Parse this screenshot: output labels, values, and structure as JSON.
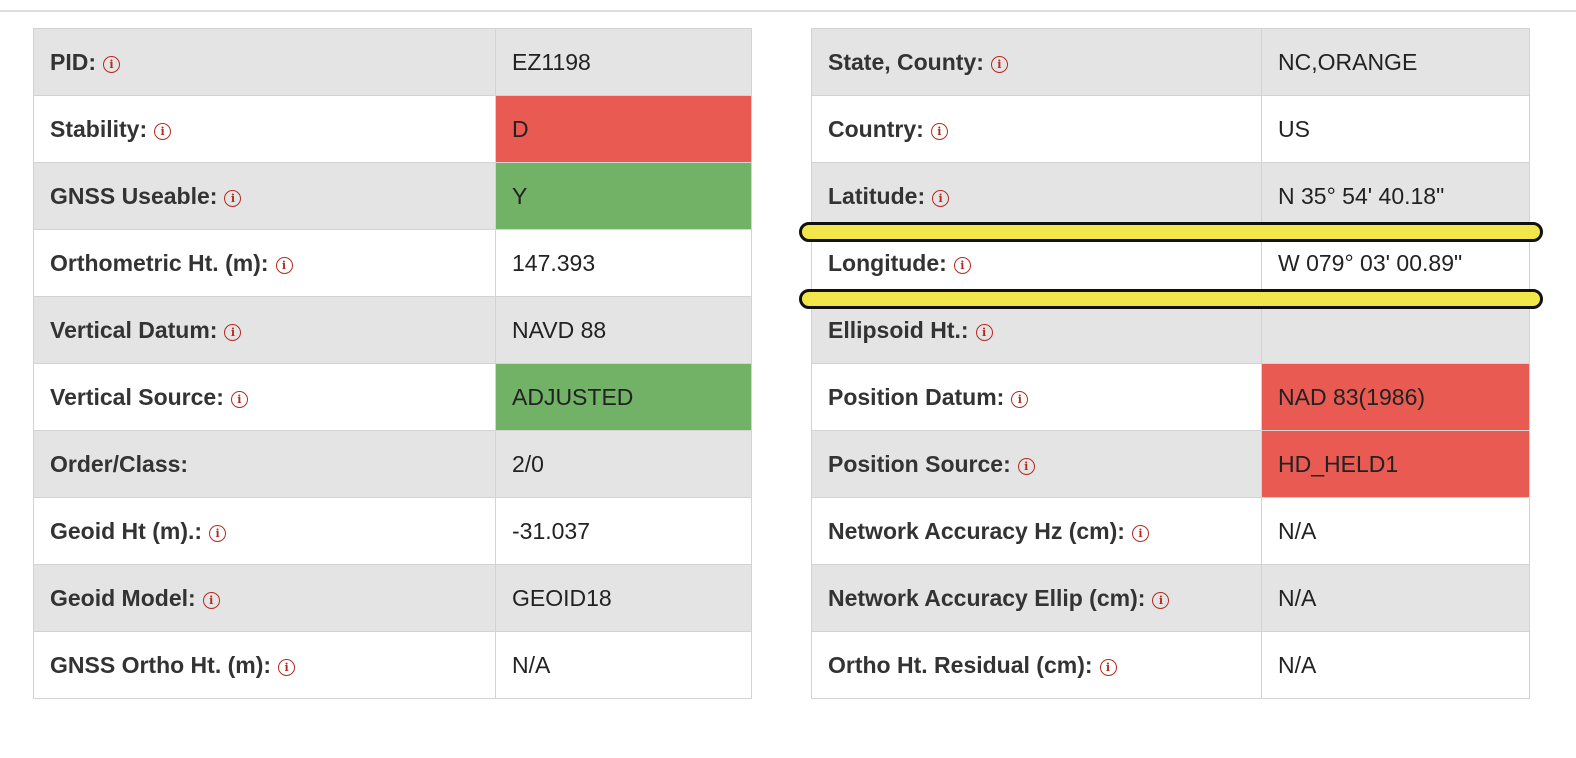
{
  "left_table": {
    "rows": [
      {
        "label": "PID:",
        "value": "EZ1198",
        "info": true,
        "status": ""
      },
      {
        "label": "Stability:",
        "value": "D",
        "info": true,
        "status": "red"
      },
      {
        "label": "GNSS Useable:",
        "value": "Y",
        "info": true,
        "status": "green"
      },
      {
        "label": "Orthometric Ht. (m):",
        "value": "147.393",
        "info": true,
        "status": ""
      },
      {
        "label": "Vertical Datum:",
        "value": "NAVD 88",
        "info": true,
        "status": ""
      },
      {
        "label": "Vertical Source:",
        "value": "ADJUSTED",
        "info": true,
        "status": "green"
      },
      {
        "label": "Order/Class:",
        "value": "2/0",
        "info": false,
        "status": ""
      },
      {
        "label": "Geoid Ht (m).:",
        "value": "-31.037",
        "info": true,
        "status": ""
      },
      {
        "label": "Geoid Model:",
        "value": "GEOID18",
        "info": true,
        "status": ""
      },
      {
        "label": "GNSS Ortho Ht. (m):",
        "value": "N/A",
        "info": true,
        "status": ""
      }
    ]
  },
  "right_table": {
    "rows": [
      {
        "label": "State, County:",
        "value": "NC,ORANGE",
        "info": true,
        "status": ""
      },
      {
        "label": "Country:",
        "value": "US",
        "info": true,
        "status": ""
      },
      {
        "label": "Latitude:",
        "value": "N 35° 54' 40.18\"",
        "info": true,
        "status": ""
      },
      {
        "label": "Longitude:",
        "value": "W 079° 03' 00.89\"",
        "info": true,
        "status": ""
      },
      {
        "label": "Ellipsoid Ht.:",
        "value": "",
        "info": true,
        "status": ""
      },
      {
        "label": "Position Datum:",
        "value": "NAD 83(1986)",
        "info": true,
        "status": "red"
      },
      {
        "label": "Position Source:",
        "value": "HD_HELD1",
        "info": true,
        "status": "red"
      },
      {
        "label": "Network Accuracy Hz (cm):",
        "value": "N/A",
        "info": true,
        "status": ""
      },
      {
        "label": "Network Accuracy Ellip (cm):",
        "value": "N/A",
        "info": true,
        "status": ""
      },
      {
        "label": "Ortho Ht. Residual (cm):",
        "value": "N/A",
        "info": true,
        "status": ""
      }
    ]
  },
  "info_icon": {
    "name": "info-icon",
    "glyph": "i"
  },
  "colors": {
    "status_red": "#e85a52",
    "status_green": "#72b266",
    "highlight": "#f2e74a"
  }
}
